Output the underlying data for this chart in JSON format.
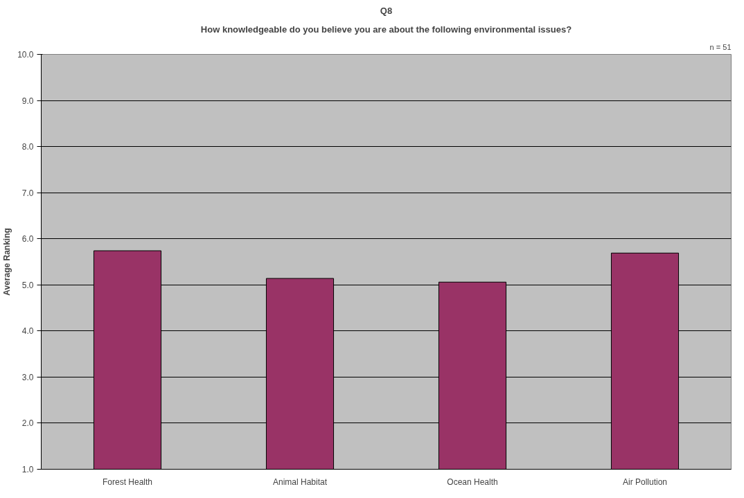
{
  "chart_data": {
    "type": "bar",
    "title": "Q8",
    "subtitle": "How knowledgeable do you believe you are about the following environmental issues?",
    "ylabel": "Average Ranking",
    "categories": [
      "Forest Health",
      "Animal Habitat",
      "Ocean Health",
      "Air Pollution"
    ],
    "series": [
      {
        "color": "#993366",
        "values": [
          5.74,
          5.14,
          5.06,
          5.69
        ]
      }
    ],
    "ylim": [
      1,
      10
    ],
    "yticks": [
      {
        "value": 1,
        "label": "1.0"
      },
      {
        "value": 2,
        "label": "2.0"
      },
      {
        "value": 3,
        "label": "3.0"
      },
      {
        "value": 4,
        "label": "4.0"
      },
      {
        "value": 5,
        "label": "5.0"
      },
      {
        "value": 6,
        "label": "6.0"
      },
      {
        "value": 7,
        "label": "7.0"
      },
      {
        "value": 8,
        "label": "8.0"
      },
      {
        "value": 9,
        "label": "9.0"
      },
      {
        "value": 10,
        "label": "10.0"
      }
    ],
    "grid": "y",
    "annotations": [
      "n = 51"
    ]
  }
}
